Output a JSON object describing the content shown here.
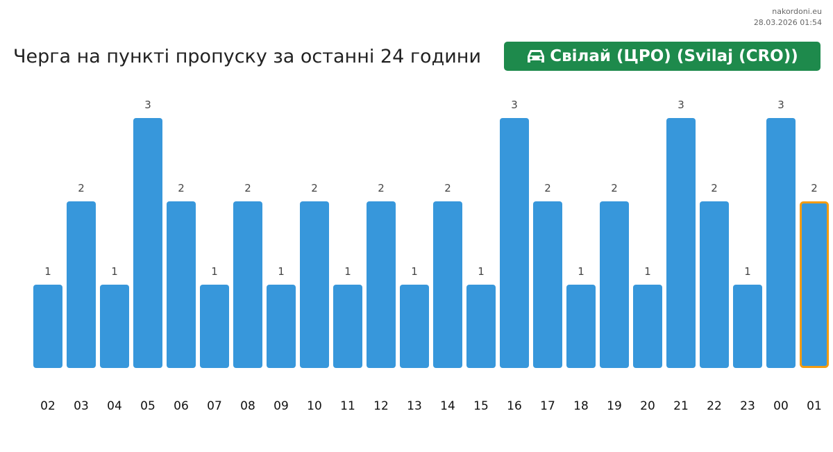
{
  "meta": {
    "site": "nakordoni.eu",
    "timestamp": "28.03.2026 01:54"
  },
  "header": {
    "title": "Черга на пункті пропуску за останні 24 години",
    "checkpoint": "Свілай (ЦРО) (Svilaj (CRO))",
    "checkpoint_icon": "car-icon"
  },
  "colors": {
    "bar": "#3797db",
    "highlight_border": "#f39c12",
    "badge": "#1e8a4c"
  },
  "chart_data": {
    "type": "bar",
    "categories": [
      "02",
      "03",
      "04",
      "05",
      "06",
      "07",
      "08",
      "09",
      "10",
      "11",
      "12",
      "13",
      "14",
      "15",
      "16",
      "17",
      "18",
      "19",
      "20",
      "21",
      "22",
      "23",
      "00",
      "01"
    ],
    "values": [
      1,
      2,
      1,
      3,
      2,
      1,
      2,
      1,
      2,
      1,
      2,
      1,
      2,
      1,
      3,
      2,
      1,
      2,
      1,
      3,
      2,
      1,
      3,
      2
    ],
    "data_labels": true,
    "highlighted_category": "01",
    "ylim": [
      0,
      3
    ],
    "grid": false,
    "title": "Черга на пункті пропуску за останні 24 години",
    "xlabel": "",
    "ylabel": ""
  }
}
